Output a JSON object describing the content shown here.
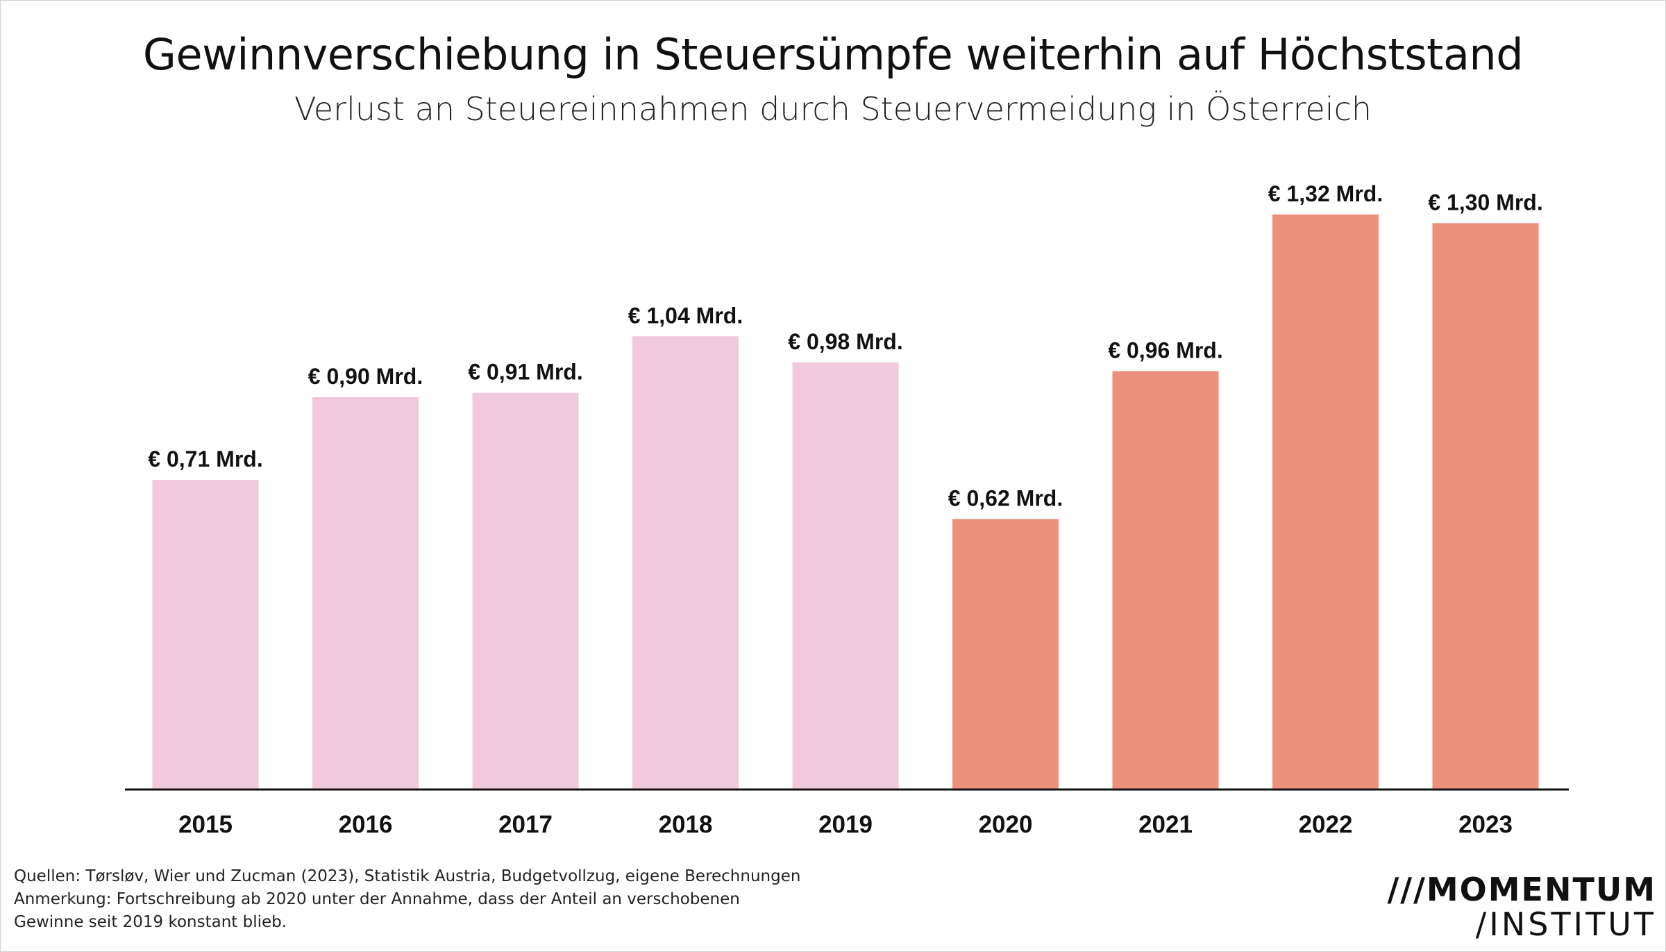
{
  "chart_data": {
    "type": "bar",
    "title": "Gewinnverschiebung in Steuersümpfe weiterhin auf Höchststand",
    "subtitle": "Verlust an Steuereinnahmen durch Steuervermeidung in Österreich",
    "categories": [
      "2015",
      "2016",
      "2017",
      "2018",
      "2019",
      "2020",
      "2021",
      "2022",
      "2023"
    ],
    "values": [
      0.71,
      0.9,
      0.91,
      1.04,
      0.98,
      0.62,
      0.96,
      1.32,
      1.3
    ],
    "data_labels": [
      "€ 0,71 Mrd.",
      "€ 0,90 Mrd.",
      "€ 0,91 Mrd.",
      "€ 1,04 Mrd.",
      "€ 0,98 Mrd.",
      "€ 0,62 Mrd.",
      "€ 0,96 Mrd.",
      "€ 1,32 Mrd.",
      "€ 1,30 Mrd."
    ],
    "bar_colors": [
      "#f0c9dc",
      "#f0c9dc",
      "#f0c9dc",
      "#f0c9dc",
      "#f0c9dc",
      "#ec907b",
      "#ec907b",
      "#ec907b",
      "#ec907b"
    ],
    "ylim": [
      0,
      1.35
    ],
    "grid": false,
    "xlabel": "",
    "ylabel": ""
  },
  "footnotes": {
    "sources": "Quellen: Tørsløv, Wier und Zucman (2023), Statistik Austria, Budgetvollzug, eigene Berechnungen",
    "note_line1": "Anmerkung:  Fortschreibung ab 2020 unter der Annahme, dass der Anteil an verschobenen",
    "note_line2": "Gewinne seit 2019 konstant blieb."
  },
  "logo": {
    "line1": "MOMENTUM",
    "line2": "INSTITUT"
  }
}
